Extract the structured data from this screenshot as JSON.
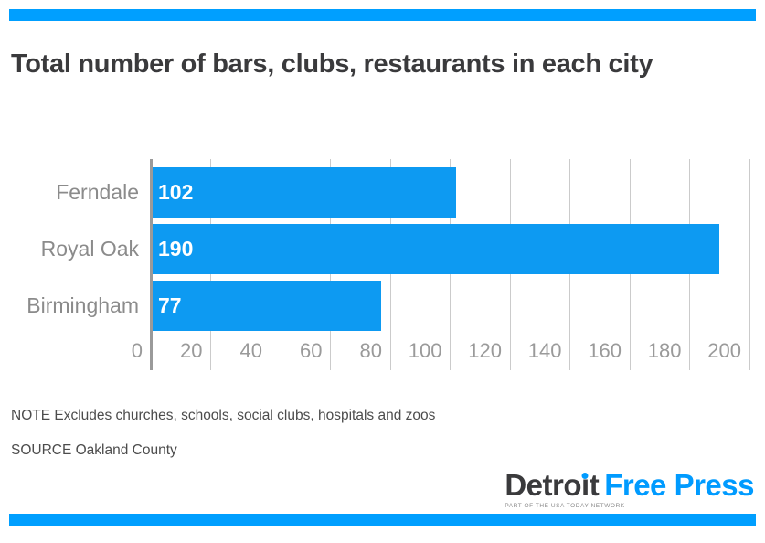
{
  "colors": {
    "accent_stripe": "#009fff",
    "bar_blue": "#0d9af2",
    "logo_blue": "#009bff",
    "title_gray": "#3a3a3c",
    "label_gray": "#8b8b8b",
    "gridline_gray": "#cbcbcb"
  },
  "title": "Total number of bars, clubs, restaurants in each city",
  "chart_data": {
    "type": "bar",
    "orientation": "horizontal",
    "title": "Total number of bars, clubs, restaurants in each city",
    "categories": [
      "Ferndale",
      "Royal Oak",
      "Birmingham"
    ],
    "values": [
      102,
      190,
      77
    ],
    "value_labels": [
      "102",
      "190",
      "77"
    ],
    "xlim": [
      0,
      200
    ],
    "x_ticks": [
      0,
      20,
      40,
      60,
      80,
      100,
      120,
      140,
      160,
      180,
      200
    ],
    "grid": true,
    "legend": "none",
    "bar_color": "#0d9af2"
  },
  "note": "NOTE Excludes churches, schools, social clubs, hospitals and zoos",
  "source": "SOURCE Oakland County",
  "logo": {
    "part1": "Detro",
    "i": "i",
    "part2": "t",
    "blue": "Free Press",
    "tagline": "PART OF THE USA TODAY NETWORK"
  }
}
